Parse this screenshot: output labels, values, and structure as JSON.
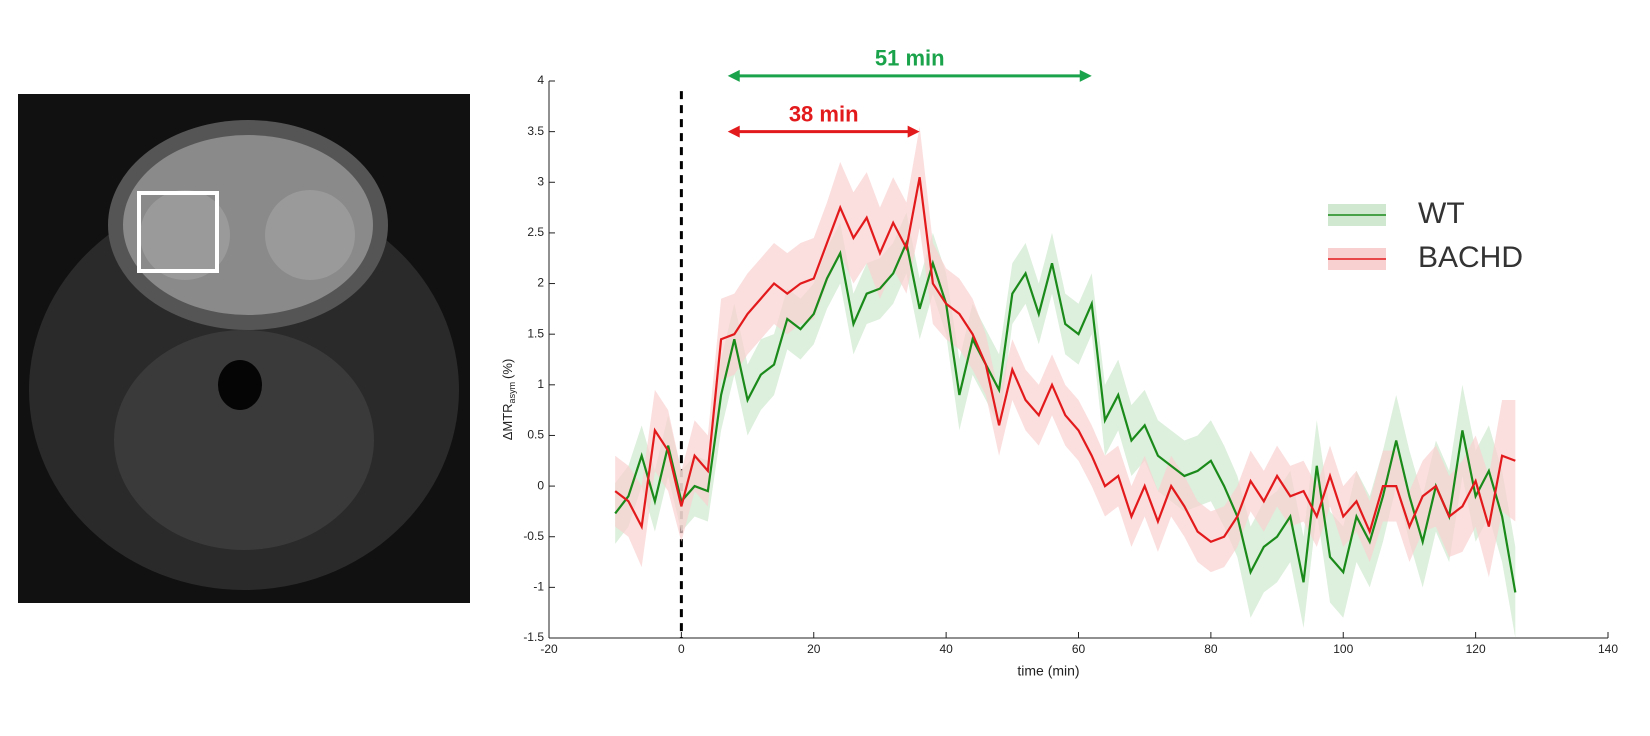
{
  "chart_data": {
    "type": "line",
    "xlabel": "time (min)",
    "ylabel": {
      "main": "ΔMTR",
      "sub": "asym",
      "unit": "(%)"
    },
    "xlim": [
      -20,
      140
    ],
    "xticks": [
      -20,
      0,
      20,
      40,
      60,
      80,
      100,
      120,
      140
    ],
    "ylim": [
      -1.5,
      4
    ],
    "yticks": [
      -1.5,
      -1,
      -0.5,
      0,
      0.5,
      1,
      1.5,
      2,
      2.5,
      3,
      3.5,
      4
    ],
    "vline": 0,
    "legend": "right",
    "x": [
      -10,
      -8,
      -6,
      -4,
      -2,
      0,
      2,
      4,
      6,
      8,
      10,
      12,
      14,
      16,
      18,
      20,
      22,
      24,
      26,
      28,
      30,
      32,
      34,
      36,
      38,
      40,
      42,
      44,
      46,
      48,
      50,
      52,
      54,
      56,
      58,
      60,
      62,
      64,
      66,
      68,
      70,
      72,
      74,
      76,
      78,
      80,
      82,
      84,
      86,
      88,
      90,
      92,
      94,
      96,
      98,
      100,
      102,
      104,
      106,
      108,
      110,
      112,
      114,
      116,
      118,
      120,
      122,
      124,
      126
    ],
    "series": [
      {
        "name": "WT",
        "color": "#1a8a1a",
        "band_color": "#cfe8cf",
        "values": [
          -0.27,
          -0.1,
          0.3,
          -0.15,
          0.4,
          -0.15,
          0.0,
          -0.05,
          0.9,
          1.45,
          0.85,
          1.1,
          1.2,
          1.65,
          1.55,
          1.7,
          2.05,
          2.3,
          1.6,
          1.9,
          1.95,
          2.1,
          2.4,
          1.75,
          2.2,
          1.8,
          0.9,
          1.45,
          1.2,
          0.95,
          1.9,
          2.1,
          1.7,
          2.2,
          1.6,
          1.5,
          1.8,
          0.65,
          0.9,
          0.45,
          0.6,
          0.3,
          0.2,
          0.1,
          0.15,
          0.25,
          0.0,
          -0.3,
          -0.85,
          -0.6,
          -0.5,
          -0.3,
          -0.95,
          0.2,
          -0.7,
          -0.85,
          -0.3,
          -0.55,
          -0.1,
          0.45,
          -0.1,
          -0.55,
          0.0,
          -0.3,
          0.55,
          -0.1,
          0.15,
          -0.3,
          -1.05
        ],
        "errors": [
          0.3,
          0.3,
          0.3,
          0.3,
          0.3,
          0.3,
          0.3,
          0.3,
          0.35,
          0.35,
          0.35,
          0.35,
          0.3,
          0.3,
          0.3,
          0.3,
          0.3,
          0.3,
          0.3,
          0.3,
          0.3,
          0.3,
          0.3,
          0.3,
          0.3,
          0.3,
          0.35,
          0.35,
          0.35,
          0.35,
          0.3,
          0.3,
          0.3,
          0.3,
          0.3,
          0.3,
          0.3,
          0.35,
          0.35,
          0.35,
          0.35,
          0.35,
          0.35,
          0.35,
          0.35,
          0.4,
          0.4,
          0.4,
          0.45,
          0.45,
          0.45,
          0.45,
          0.45,
          0.45,
          0.45,
          0.45,
          0.45,
          0.45,
          0.45,
          0.45,
          0.45,
          0.45,
          0.45,
          0.45,
          0.45,
          0.45,
          0.45,
          0.45,
          0.45
        ]
      },
      {
        "name": "BACHD",
        "color": "#e31a1c",
        "band_color": "#f9d0d0",
        "values": [
          -0.05,
          -0.15,
          -0.4,
          0.55,
          0.35,
          -0.2,
          0.3,
          0.15,
          1.45,
          1.5,
          1.7,
          1.85,
          2.0,
          1.9,
          2.0,
          2.05,
          2.4,
          2.75,
          2.45,
          2.65,
          2.3,
          2.6,
          2.35,
          3.05,
          2.0,
          1.8,
          1.7,
          1.5,
          1.2,
          0.6,
          1.15,
          0.85,
          0.7,
          1.0,
          0.7,
          0.55,
          0.3,
          0.0,
          0.1,
          -0.3,
          0.0,
          -0.35,
          0.0,
          -0.2,
          -0.45,
          -0.55,
          -0.5,
          -0.3,
          0.05,
          -0.15,
          0.1,
          -0.1,
          -0.05,
          -0.3,
          0.1,
          -0.3,
          -0.15,
          -0.45,
          0.0,
          0.0,
          -0.4,
          -0.1,
          0.0,
          -0.3,
          -0.2,
          0.05,
          -0.4,
          0.3,
          0.25
        ],
        "errors": [
          0.35,
          0.35,
          0.4,
          0.4,
          0.4,
          0.35,
          0.35,
          0.35,
          0.4,
          0.4,
          0.4,
          0.4,
          0.4,
          0.4,
          0.4,
          0.4,
          0.4,
          0.45,
          0.45,
          0.45,
          0.45,
          0.45,
          0.45,
          0.5,
          0.4,
          0.35,
          0.35,
          0.35,
          0.3,
          0.3,
          0.3,
          0.3,
          0.3,
          0.3,
          0.3,
          0.3,
          0.3,
          0.3,
          0.3,
          0.3,
          0.3,
          0.3,
          0.3,
          0.3,
          0.3,
          0.3,
          0.3,
          0.3,
          0.3,
          0.3,
          0.3,
          0.3,
          0.3,
          0.3,
          0.3,
          0.3,
          0.3,
          0.3,
          0.35,
          0.35,
          0.35,
          0.35,
          0.4,
          0.4,
          0.45,
          0.45,
          0.5,
          0.55,
          0.6
        ]
      }
    ],
    "annotations": [
      {
        "text": "51 min",
        "x": [
          7,
          62
        ],
        "y": 4.05,
        "color": "#1aa34a"
      },
      {
        "text": "38 min",
        "x": [
          7,
          36
        ],
        "y": 3.5,
        "color": "#e31a1c"
      }
    ]
  }
}
